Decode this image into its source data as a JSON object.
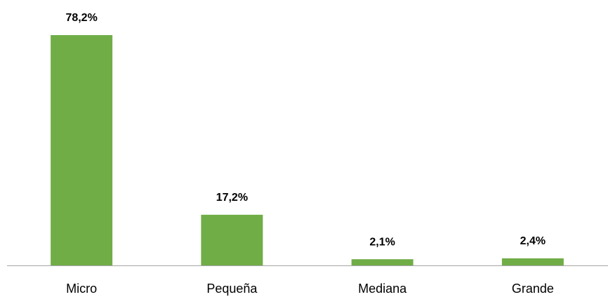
{
  "chart_data": {
    "type": "bar",
    "categories": [
      "Micro",
      "Pequeña",
      "Mediana",
      "Grande"
    ],
    "values": [
      78.2,
      17.2,
      2.1,
      2.4
    ],
    "value_labels": [
      "78,2%",
      "17,2%",
      "2,1%",
      "2,4%"
    ],
    "color": "#70ad47"
  }
}
